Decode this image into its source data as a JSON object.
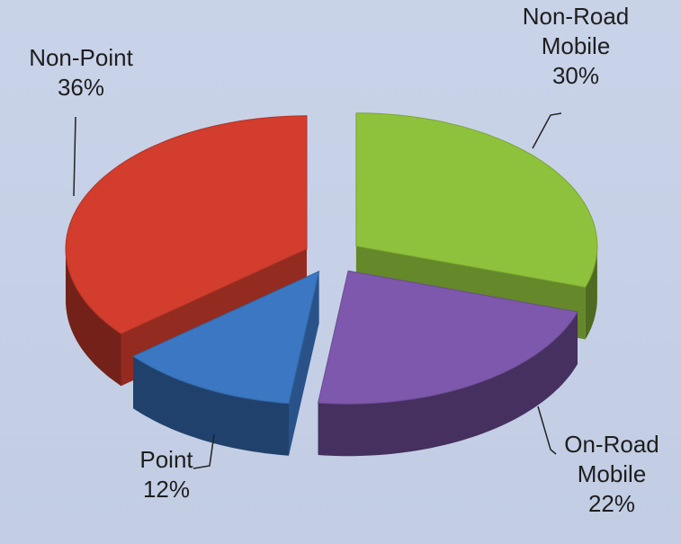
{
  "chart_data": {
    "type": "pie",
    "categories": [
      "Non-Road Mobile",
      "On-Road Mobile",
      "Point",
      "Non-Point"
    ],
    "values": [
      30,
      22,
      12,
      36
    ],
    "value_labels": [
      "30%",
      "22%",
      "12%",
      "36%"
    ],
    "colors": [
      "#8fc23c",
      "#7e58ad",
      "#3b77c2",
      "#d23d2e"
    ]
  }
}
